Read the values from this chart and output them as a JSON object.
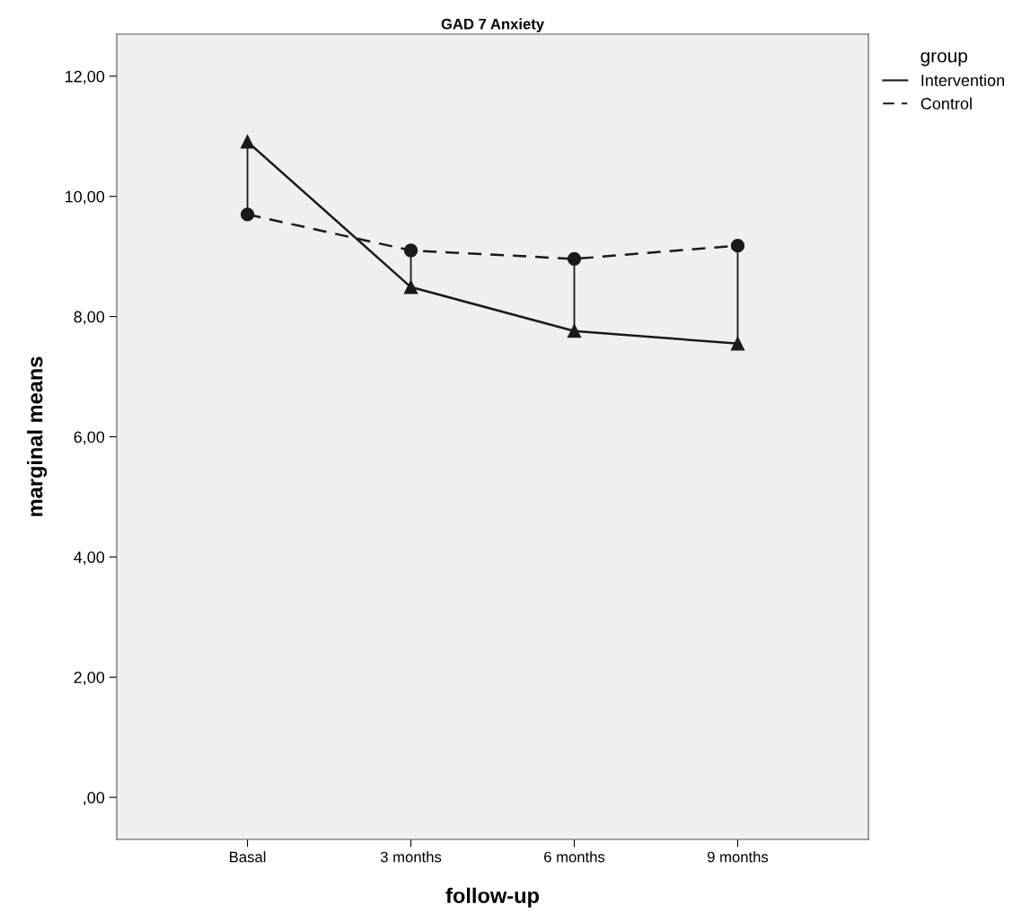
{
  "chart_data": {
    "type": "line",
    "title": "GAD 7 Anxiety",
    "xlabel": "follow-up",
    "ylabel": "marginal means",
    "legend_title": "group",
    "categories": [
      "Basal",
      "3 months",
      "6 months",
      "9 months"
    ],
    "series": [
      {
        "name": "Intervention",
        "color": "#1a1a1a",
        "values": [
          10.91,
          8.49,
          7.76,
          7.55
        ],
        "marker": "triangle",
        "line_style": "solid"
      },
      {
        "name": "Control",
        "color": "#1a1a1a",
        "values": [
          9.7,
          9.1,
          8.96,
          9.18
        ],
        "errors": [
          [
            9.7,
            10.91
          ],
          [
            8.49,
            9.1
          ],
          [
            7.76,
            8.96
          ],
          [
            7.55,
            9.18
          ]
        ],
        "marker": "circle",
        "line_style": "dashed"
      }
    ],
    "ylim": [
      -0.7,
      12.7
    ],
    "yticks": [
      {
        "value": 0,
        "label": ",00"
      },
      {
        "value": 2,
        "label": "2,00"
      },
      {
        "value": 4,
        "label": "4,00"
      },
      {
        "value": 6,
        "label": "6,00"
      },
      {
        "value": 8,
        "label": "8,00"
      },
      {
        "value": 10,
        "label": "10,00"
      },
      {
        "value": 12,
        "label": "12,00"
      }
    ],
    "grid": false,
    "legend": "top right"
  }
}
